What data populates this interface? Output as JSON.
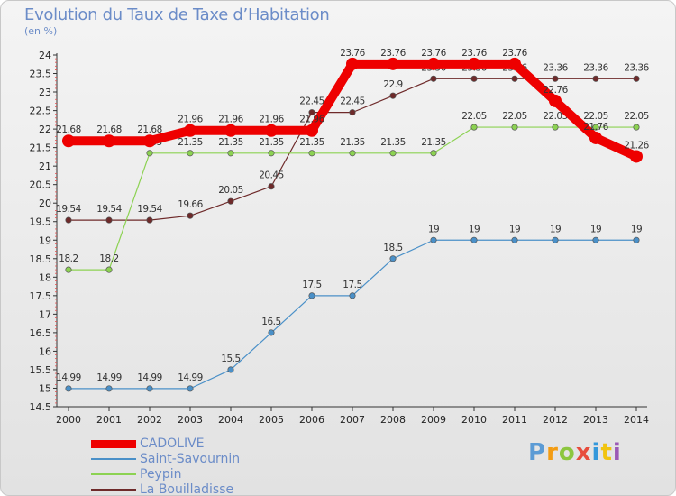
{
  "title": "Evolution du Taux de Taxe d’Habitation",
  "subtitle": "(en %)",
  "logo": {
    "text": "Proxiti",
    "colors": [
      "#5b9bd5",
      "#f39c12",
      "#8cc63f",
      "#e74c3c",
      "#3498db",
      "#f1c40f",
      "#9b59b6"
    ]
  },
  "chart_data": {
    "type": "line",
    "title": "Evolution du Taux de Taxe d’Habitation",
    "subtitle": "(en %)",
    "x": [
      "2000",
      "2001",
      "2002",
      "2003",
      "2004",
      "2005",
      "2006",
      "2007",
      "2008",
      "2009",
      "2010",
      "2011",
      "2012",
      "2013",
      "2014"
    ],
    "ylim": [
      14.5,
      24
    ],
    "yticks": [
      "14.5",
      "15",
      "15.5",
      "16",
      "16.5",
      "17",
      "17.5",
      "18",
      "18.5",
      "19",
      "19.5",
      "20",
      "20.5",
      "21",
      "21.5",
      "22",
      "22.5",
      "23",
      "23.5",
      "24"
    ],
    "grid": false,
    "legend_position": "bottom-left",
    "series": [
      {
        "name": "La Bouilladisse",
        "color": "#6e2a2a",
        "values": [
          19.54,
          19.54,
          19.54,
          19.66,
          20.05,
          20.45,
          22.45,
          22.45,
          22.9,
          23.36,
          23.36,
          23.36,
          23.36,
          23.36,
          23.36
        ],
        "labels": [
          "19.54",
          "19.54",
          "19.54",
          "19.66",
          "20.05",
          "20.45",
          "22.45",
          "22.45",
          "22.9",
          "23.36",
          "23.36",
          "23.36",
          "23.36",
          "23.36",
          "23.36"
        ]
      },
      {
        "name": "Peypin",
        "color": "#8cd252",
        "values": [
          18.2,
          18.2,
          21.35,
          21.35,
          21.35,
          21.35,
          21.35,
          21.35,
          21.35,
          21.35,
          22.05,
          22.05,
          22.05,
          22.05,
          22.05
        ],
        "labels": [
          "18.2",
          "18.2",
          "21.35",
          "21.35",
          "21.35",
          "21.35",
          "21.35",
          "21.35",
          "21.35",
          "21.35",
          "22.05",
          "22.05",
          "22.05",
          "22.05",
          "22.05"
        ]
      },
      {
        "name": "Saint-Savournin",
        "color": "#4a90c8",
        "values": [
          14.99,
          14.99,
          14.99,
          14.99,
          15.5,
          16.5,
          17.5,
          17.5,
          18.5,
          19,
          19,
          19,
          19,
          19,
          19
        ],
        "labels": [
          "14.99",
          "14.99",
          "14.99",
          "14.99",
          "15.5",
          "16.5",
          "17.5",
          "17.5",
          "18.5",
          "19",
          "19",
          "19",
          "19",
          "19",
          "19"
        ]
      },
      {
        "name": "CADOLIVE",
        "color": "#ee0000",
        "values": [
          21.68,
          21.68,
          21.68,
          21.96,
          21.96,
          21.96,
          21.96,
          23.76,
          23.76,
          23.76,
          23.76,
          23.76,
          22.76,
          21.76,
          21.26
        ],
        "labels": [
          "21.68",
          "21.68",
          "21.68",
          "21.96",
          "21.96",
          "21.96",
          "21.96",
          "23.76",
          "23.76",
          "23.76",
          "23.76",
          "23.76",
          "22.76",
          "21.76",
          "21.26"
        ]
      }
    ],
    "legend": [
      "CADOLIVE",
      "Saint-Savournin",
      "Peypin",
      "La Bouilladisse"
    ]
  }
}
